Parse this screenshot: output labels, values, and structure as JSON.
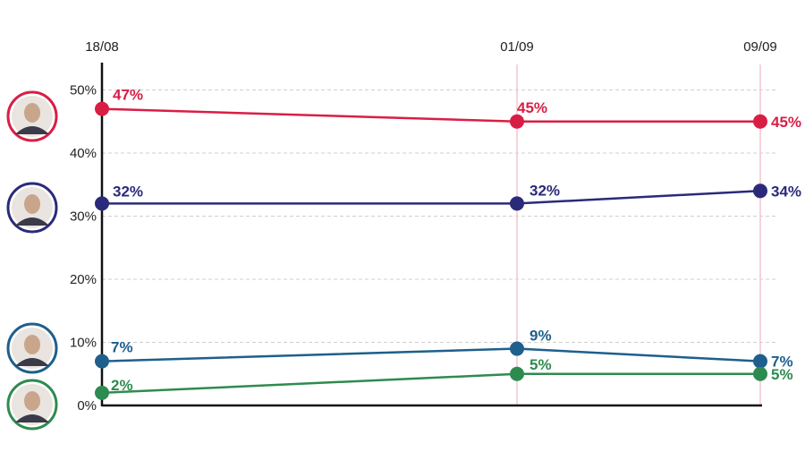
{
  "chart_data": {
    "type": "line",
    "categories": [
      "18/08",
      "01/09",
      "09/09"
    ],
    "y_ticks": [
      "0%",
      "10%",
      "20%",
      "30%",
      "40%",
      "50%"
    ],
    "ylim": [
      0,
      55
    ],
    "grid": true,
    "series": [
      {
        "key": "red",
        "color": "#d91e45",
        "avatar_icon": "candidate-portrait-icon",
        "values": [
          47,
          45,
          45
        ],
        "labels": [
          "47%",
          "45%",
          "45%"
        ]
      },
      {
        "key": "navy",
        "color": "#2b2a7a",
        "avatar_icon": "candidate-portrait-icon",
        "values": [
          32,
          32,
          34
        ],
        "labels": [
          "32%",
          "32%",
          "34%"
        ]
      },
      {
        "key": "blue",
        "color": "#1e5f8c",
        "avatar_icon": "candidate-portrait-icon",
        "values": [
          7,
          9,
          7
        ],
        "labels": [
          "7%",
          "9%",
          "7%"
        ]
      },
      {
        "key": "green",
        "color": "#2e8b4f",
        "avatar_icon": "candidate-portrait-icon",
        "values": [
          2,
          5,
          5
        ],
        "labels": [
          "2%",
          "5%",
          "5%"
        ]
      }
    ]
  }
}
